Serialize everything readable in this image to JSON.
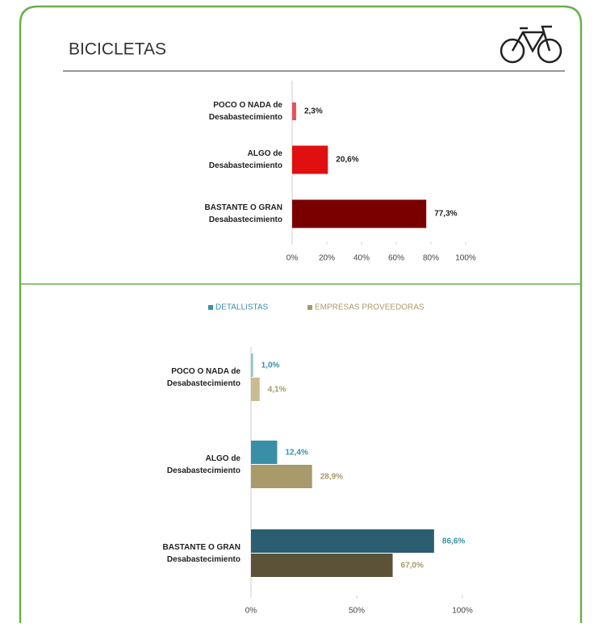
{
  "header": {
    "title": "BICICLETAS"
  },
  "chart_data": [
    {
      "type": "bar",
      "orientation": "horizontal",
      "categories": [
        [
          "POCO O NADA de",
          "Desabastecimiento"
        ],
        [
          "ALGO de",
          "Desabastecimiento"
        ],
        [
          "BASTANTE O GRAN",
          "Desabastecimiento"
        ]
      ],
      "values": [
        2.3,
        20.6,
        77.3
      ],
      "value_labels": [
        "2,3%",
        "20,6%",
        "77,3%"
      ],
      "colors": [
        "#e8505a",
        "#e01010",
        "#7a0000"
      ],
      "xlim": [
        0,
        100
      ],
      "xticks": [
        {
          "value": 0,
          "label": "0%"
        },
        {
          "value": 20,
          "label": "20%"
        },
        {
          "value": 40,
          "label": "40%"
        },
        {
          "value": 60,
          "label": "60%"
        },
        {
          "value": 80,
          "label": "80%"
        },
        {
          "value": 100,
          "label": "100%"
        }
      ]
    },
    {
      "type": "grouped-bar",
      "orientation": "horizontal",
      "legend": "top",
      "categories": [
        [
          "POCO O NADA de",
          "Desabastecimiento"
        ],
        [
          "ALGO de",
          "Desabastecimiento"
        ],
        [
          "BASTANTE O GRAN",
          "Desabastecimiento"
        ]
      ],
      "series": [
        {
          "name": "DETALLISTAS",
          "color": "#3a8fa8",
          "colors": [
            "#8ec3d3",
            "#3a8fa8",
            "#2a5e70"
          ],
          "values": [
            1.0,
            12.4,
            86.6
          ],
          "value_labels": [
            "1,0%",
            "12,4%",
            "86,6%"
          ]
        },
        {
          "name": "EMPRESAS PROVEEDORAS",
          "color": "#a89a6a",
          "colors": [
            "#c9bc90",
            "#a89a6a",
            "#5b5238"
          ],
          "values": [
            4.1,
            28.9,
            67.0
          ],
          "value_labels": [
            "4,1%",
            "28,9%",
            "67,0%"
          ]
        }
      ],
      "xlim": [
        0,
        100
      ],
      "xticks": [
        {
          "value": 0,
          "label": "0%"
        },
        {
          "value": 50,
          "label": "50%"
        },
        {
          "value": 100,
          "label": "100%"
        }
      ]
    }
  ]
}
